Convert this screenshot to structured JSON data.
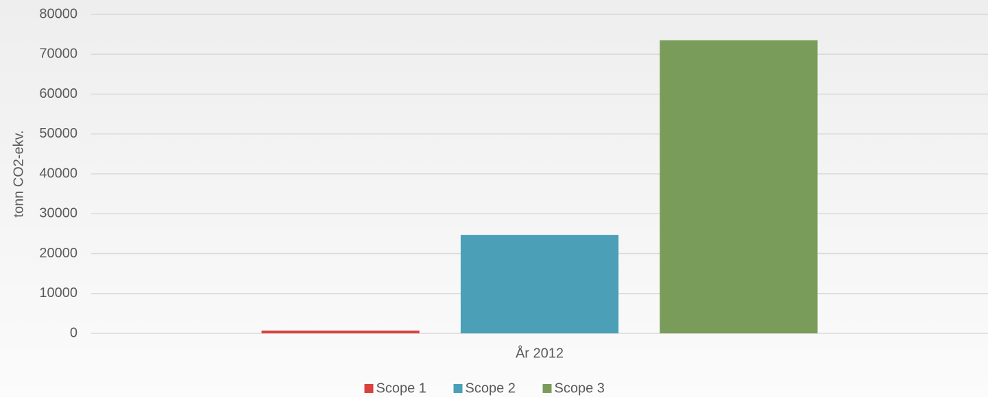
{
  "chart_data": {
    "type": "bar",
    "categories": [
      "År 2012"
    ],
    "series": [
      {
        "name": "Scope 1",
        "color": "#d9423f",
        "values": [
          700
        ]
      },
      {
        "name": "Scope 2",
        "color": "#4ba0b7",
        "values": [
          24700
        ]
      },
      {
        "name": "Scope 3",
        "color": "#7a9c5a",
        "values": [
          73500
        ]
      }
    ],
    "ylabel": "tonn CO2-ekv.",
    "ylim": [
      0,
      80000
    ],
    "yticks": [
      0,
      10000,
      20000,
      30000,
      40000,
      50000,
      60000,
      70000,
      80000
    ],
    "grid": true,
    "legend": "bottom"
  }
}
